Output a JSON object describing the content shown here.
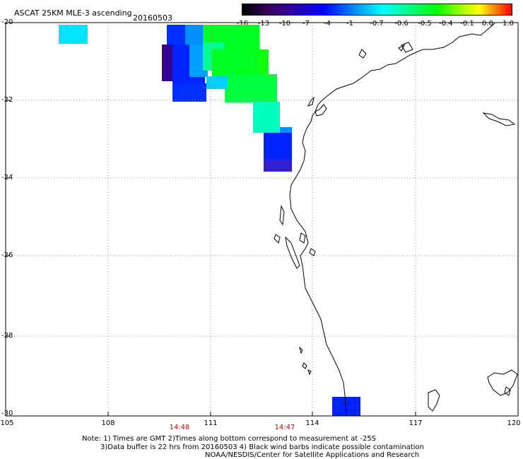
{
  "header": {
    "title": "ASCAT 25KM MLE-3 ascending",
    "date": "20160503"
  },
  "colorbar": {
    "ticks": [
      "-16",
      "-13",
      "-10",
      "-7",
      "-4",
      "-1",
      "-0.7",
      "-0.6",
      "-0.5",
      "-0.4",
      "-0.1",
      "0.0",
      "1.0"
    ]
  },
  "axes": {
    "lat_labels": [
      "-20",
      "-22",
      "-24",
      "-26",
      "-28",
      "-30"
    ],
    "lon_labels": [
      "105",
      "108",
      "111",
      "114",
      "117",
      "120"
    ],
    "times": [
      "14:48",
      "14:47"
    ]
  },
  "notes": {
    "line1": "Note: 1) Times are GMT 2)Times along bottom correspond to measurement at -25S",
    "line2": "3)Data buffer is 22 hrs from 20160503 4) Black wind barbs indicate possible contamination",
    "line3": "NOAA/NESDIS/Center for Satellite Applications and Research"
  },
  "colors": {
    "cyan": "#00e5ff",
    "teal": "#00ffbf",
    "green": "#00ff20",
    "blue": "#0022ff",
    "deepblue": "#2a00d0",
    "indigo": "#3a0090"
  }
}
